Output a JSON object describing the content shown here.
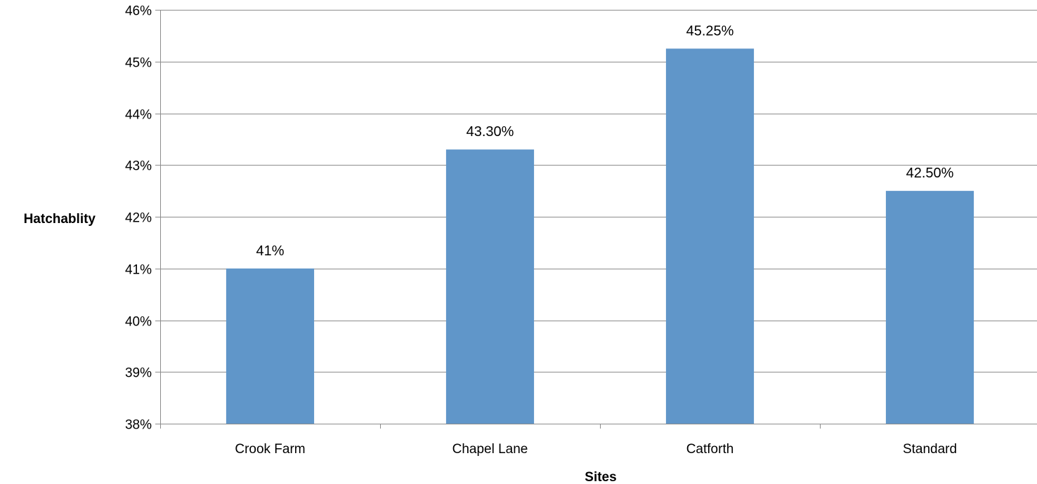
{
  "chart_data": {
    "type": "bar",
    "categories": [
      "Crook Farm",
      "Chapel Lane",
      "Catforth",
      "Standard"
    ],
    "values": [
      41.0,
      43.3,
      45.25,
      42.5
    ],
    "data_labels": [
      "41%",
      "43.30%",
      "45.25%",
      "42.50%"
    ],
    "title": "",
    "xlabel": "Sites",
    "ylabel": "Hatchablity",
    "ylim": [
      38,
      46
    ],
    "yticks": [
      38,
      39,
      40,
      41,
      42,
      43,
      44,
      45,
      46
    ],
    "ytick_labels": [
      "38%",
      "39%",
      "40%",
      "41%",
      "42%",
      "43%",
      "44%",
      "45%",
      "46%"
    ],
    "grid": true,
    "legend": "none",
    "bar_color": "#6096C9",
    "grid_color": "#8C8C8C"
  }
}
